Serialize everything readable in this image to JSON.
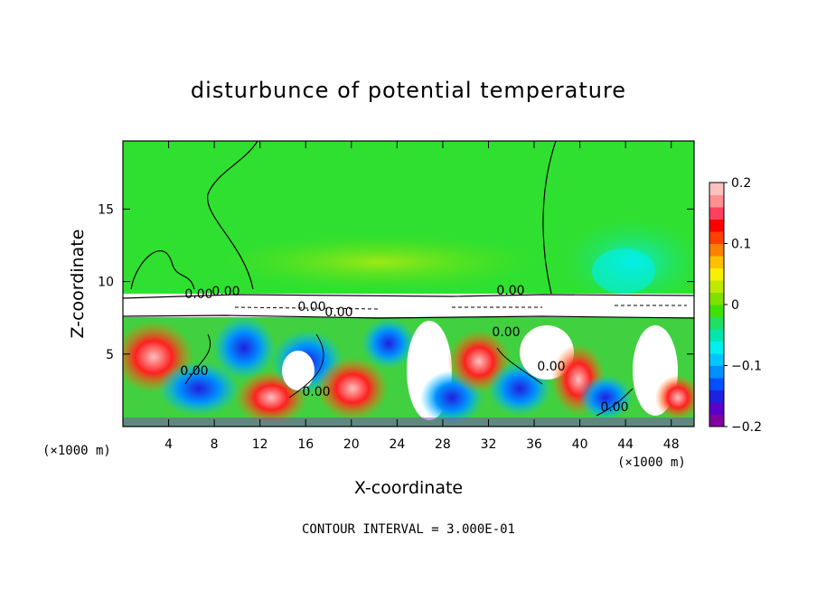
{
  "chart_data": {
    "type": "heatmap",
    "title": "disturbunce of potential temperature",
    "xlabel": "X-coordinate",
    "ylabel": "Z-coordinate",
    "x_unit": "(×1000 m)",
    "x_unit_right": "(×1000 m)",
    "xlim": [
      0,
      50
    ],
    "ylim": [
      0,
      19.7
    ],
    "x_ticks": [
      4,
      8,
      12,
      16,
      20,
      24,
      28,
      32,
      36,
      40,
      44,
      48
    ],
    "y_ticks": [
      5,
      10,
      15
    ],
    "colorbar": {
      "range": [
        -0.2,
        0.2
      ],
      "ticks": [
        {
          "value": 0.2,
          "label": "0.2"
        },
        {
          "value": 0.1,
          "label": "0.1"
        },
        {
          "value": 0,
          "label": "0"
        },
        {
          "value": -0.1,
          "label": "−0.1"
        },
        {
          "value": -0.2,
          "label": "−0.2"
        }
      ],
      "colors": [
        "#8000a0",
        "#5a00c8",
        "#2020e0",
        "#0050ff",
        "#0090ff",
        "#00c8ff",
        "#00f0f0",
        "#00e8b0",
        "#20e060",
        "#40e000",
        "#80e000",
        "#c0e800",
        "#f8f000",
        "#ffc000",
        "#ff8000",
        "#ff4000",
        "#ff0000",
        "#ff4060",
        "#ff9090",
        "#ffc0c0"
      ]
    },
    "contour_labels": [
      "0.00",
      "0.00",
      "0.00",
      "0.00",
      "0.00",
      "0.00",
      "0.00",
      "0.00",
      "0.00",
      "0.00"
    ],
    "contour_interval": "CONTOUR INTERVAL = 3.000E-01"
  }
}
